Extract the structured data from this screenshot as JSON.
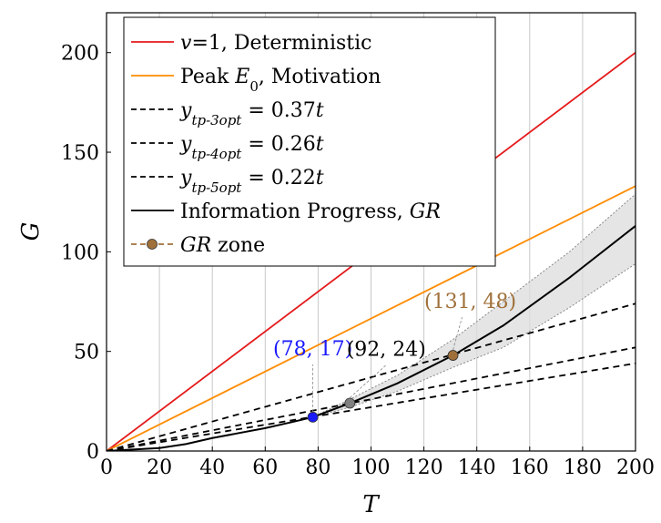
{
  "chart_data": {
    "type": "line",
    "xlabel": "T",
    "ylabel": "G",
    "xlim": [
      0,
      200
    ],
    "ylim": [
      0,
      220
    ],
    "grid": "vertical",
    "legend_placement": "top-left",
    "x_ticks": [
      "0",
      "20",
      "40",
      "60",
      "80",
      "100",
      "120",
      "140",
      "160",
      "180",
      "200"
    ],
    "y_ticks": [
      "0",
      "50",
      "100",
      "150",
      "200"
    ],
    "x_tick_values": [
      0,
      20,
      40,
      60,
      80,
      100,
      120,
      140,
      160,
      180,
      200
    ],
    "y_tick_values": [
      0,
      50,
      100,
      150,
      200
    ],
    "series": [
      {
        "name": "v=1, Deterministic",
        "style": "solid",
        "color": "#e41a1c",
        "x": [
          0,
          200
        ],
        "y": [
          0,
          200
        ]
      },
      {
        "name": "Peak E0, Motivation",
        "style": "solid",
        "color": "#ff8c00",
        "x": [
          0,
          200
        ],
        "y": [
          0,
          133
        ]
      },
      {
        "name": "y_tp-3opt = 0.37t",
        "style": "dashed",
        "color": "#000000",
        "x": [
          0,
          200
        ],
        "y": [
          0,
          74
        ]
      },
      {
        "name": "y_tp-4opt = 0.26t",
        "style": "dashed",
        "color": "#000000",
        "x": [
          0,
          200
        ],
        "y": [
          0,
          52
        ]
      },
      {
        "name": "y_tp-5opt = 0.22t",
        "style": "dashed",
        "color": "#000000",
        "x": [
          0,
          200
        ],
        "y": [
          0,
          44
        ]
      },
      {
        "name": "Information Progress, GR",
        "style": "solid",
        "color": "#000000",
        "x": [
          0,
          20,
          30,
          40,
          50,
          60,
          70,
          78,
          92,
          110,
          131,
          150,
          175,
          200
        ],
        "y": [
          0,
          1.5,
          3.5,
          6.5,
          9,
          11.5,
          14.5,
          17,
          24,
          34,
          48,
          63,
          87,
          113
        ]
      }
    ],
    "band": {
      "x": [
        78,
        92,
        110,
        131,
        150,
        175,
        200
      ],
      "upper": [
        17,
        26,
        38,
        56,
        75,
        100,
        129
      ],
      "lower": [
        17,
        22,
        30,
        42,
        52,
        72,
        94
      ]
    },
    "points": [
      {
        "label": "(78, 17)",
        "x": 78,
        "y": 17,
        "color": "#1a1aff"
      },
      {
        "label": "(92, 24)",
        "x": 92,
        "y": 24,
        "color": "#808080"
      },
      {
        "label": "(131, 48)",
        "x": 131,
        "y": 48,
        "color": "#a0703a"
      }
    ],
    "legend": [
      {
        "kind": "line",
        "color": "#e41a1c",
        "dash": false,
        "text": "v=1, Deterministic"
      },
      {
        "kind": "line",
        "color": "#ff8c00",
        "dash": false,
        "text": "Peak E0, Motivation"
      },
      {
        "kind": "line",
        "color": "#000000",
        "dash": true,
        "text": "y_tp-3opt = 0.37t"
      },
      {
        "kind": "line",
        "color": "#000000",
        "dash": true,
        "text": "y_tp-4opt = 0.26t"
      },
      {
        "kind": "line",
        "color": "#000000",
        "dash": true,
        "text": "y_tp-5opt = 0.22t"
      },
      {
        "kind": "line",
        "color": "#000000",
        "dash": false,
        "text": "Information Progress, GR"
      },
      {
        "kind": "marker",
        "color": "#a0703a",
        "dash": true,
        "text": "GR zone"
      }
    ]
  }
}
